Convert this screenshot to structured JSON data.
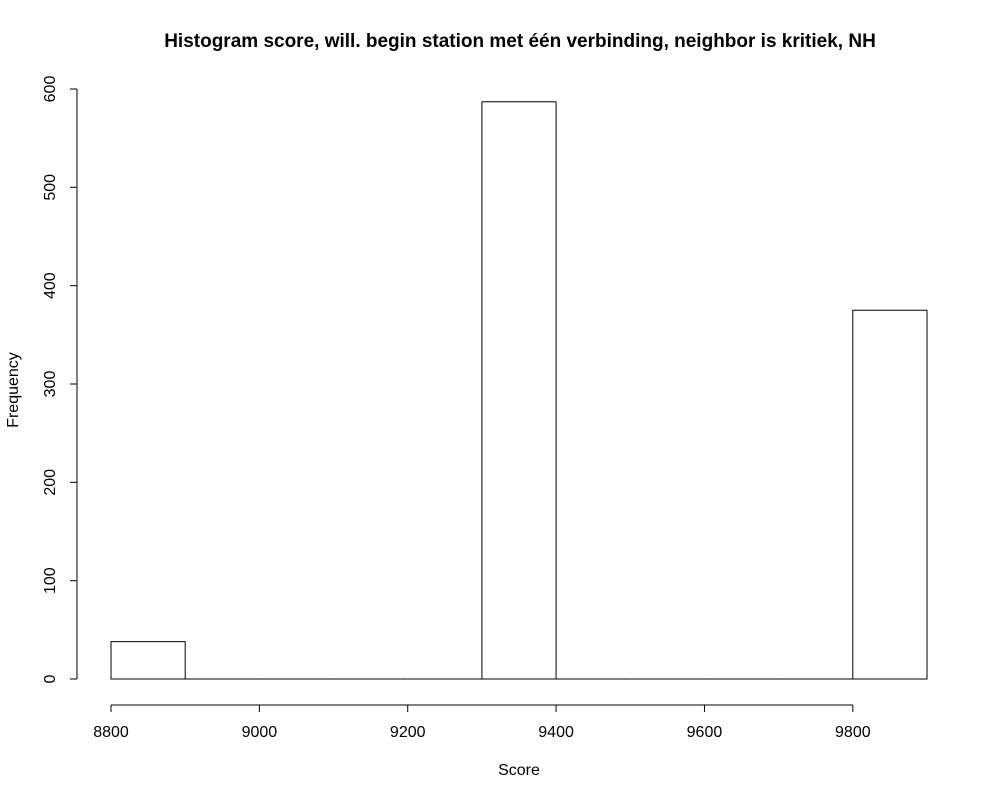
{
  "chart_data": {
    "type": "bar",
    "title": "Histogram score, will. begin station met één verbinding, neighbor is kritiek, NH",
    "xlabel": "Score",
    "ylabel": "Frequency",
    "bin_edges": [
      8800,
      8900,
      9000,
      9100,
      9200,
      9300,
      9400,
      9500,
      9600,
      9700,
      9800,
      9900
    ],
    "values": [
      38,
      0,
      0,
      0,
      0,
      587,
      0,
      0,
      0,
      0,
      375
    ],
    "xlim": [
      8800,
      9900
    ],
    "ylim": [
      0,
      600
    ],
    "x_ticks": [
      8800,
      9000,
      9200,
      9400,
      9600,
      9800
    ],
    "y_ticks": [
      0,
      100,
      200,
      300,
      400,
      500,
      600
    ],
    "grid": false,
    "bar_fill": "#ffffff",
    "bar_stroke": "#000000"
  }
}
